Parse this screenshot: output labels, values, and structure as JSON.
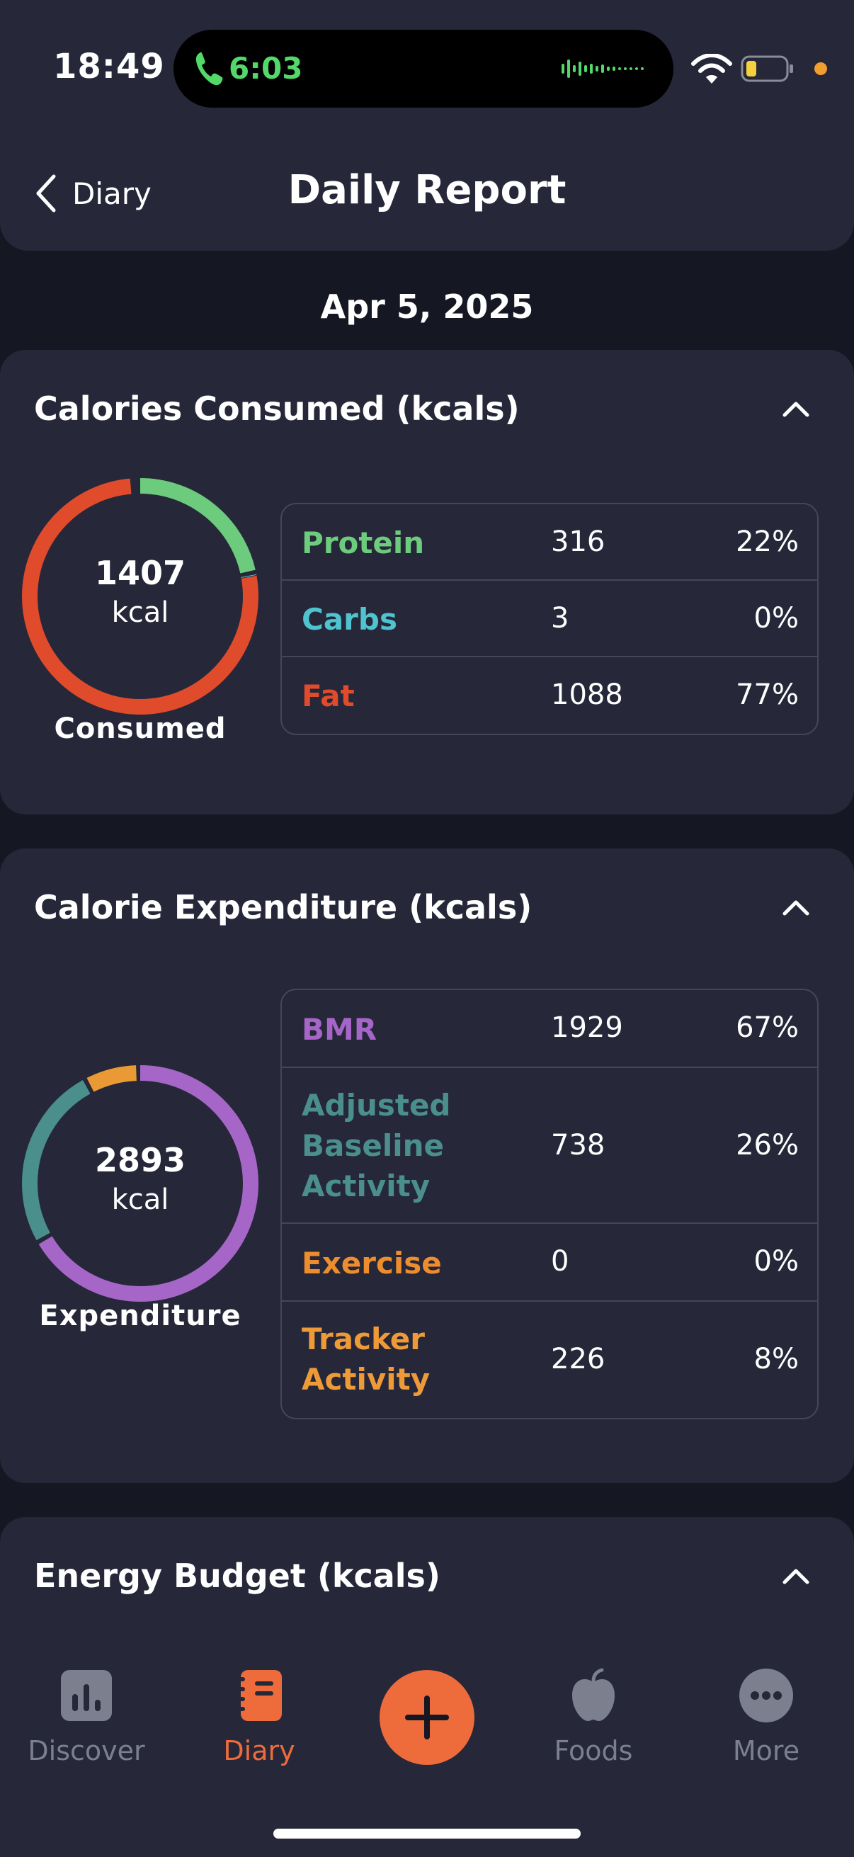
{
  "status_bar": {
    "time": "18:49",
    "call_time": "6:03"
  },
  "header": {
    "back_label": "Diary",
    "title": "Daily Report"
  },
  "date": "Apr 5, 2025",
  "consumed": {
    "title": "Calories Consumed (kcals)",
    "total": "1407",
    "unit": "kcal",
    "label": "Consumed",
    "rows": [
      {
        "name": "Protein",
        "value": "316",
        "percent": "22%",
        "color": "#6dcb7d"
      },
      {
        "name": "Carbs",
        "value": "3",
        "percent": "0%",
        "color": "#4fc3cf"
      },
      {
        "name": "Fat",
        "value": "1088",
        "percent": "77%",
        "color": "#e04b2c"
      }
    ],
    "segments": [
      {
        "name": "Protein",
        "share": 0.22,
        "color": "#6dcb7d"
      },
      {
        "name": "Carbs",
        "share": 0.002,
        "color": "#4fc3cf"
      },
      {
        "name": "Fat",
        "share": 0.77,
        "color": "#e04b2c"
      }
    ]
  },
  "expenditure": {
    "title": "Calorie Expenditure (kcals)",
    "total": "2893",
    "unit": "kcal",
    "label": "Expenditure",
    "rows": [
      {
        "name": "BMR",
        "value": "1929",
        "percent": "67%",
        "color": "#a566c8"
      },
      {
        "name": "Adjusted Baseline Activity",
        "value": "738",
        "percent": "26%",
        "color": "#4a8f8c"
      },
      {
        "name": "Exercise",
        "value": "0",
        "percent": "0%",
        "color": "#ee8d2e"
      },
      {
        "name": "Tracker Activity",
        "value": "226",
        "percent": "8%",
        "color": "#ee9a38"
      }
    ],
    "segments": [
      {
        "name": "BMR",
        "share": 0.67,
        "color": "#a566c8"
      },
      {
        "name": "Adjusted Baseline Activity",
        "share": 0.255,
        "color": "#4a8f8c"
      },
      {
        "name": "Tracker Activity",
        "share": 0.075,
        "color": "#e99a35"
      }
    ]
  },
  "energy_budget": {
    "title": "Energy Budget (kcals)"
  },
  "tabbar": {
    "discover": "Discover",
    "diary": "Diary",
    "foods": "Foods",
    "more": "More"
  },
  "colors": {
    "accent": "#ee6b3b",
    "background": "#151722",
    "card": "#262839"
  }
}
